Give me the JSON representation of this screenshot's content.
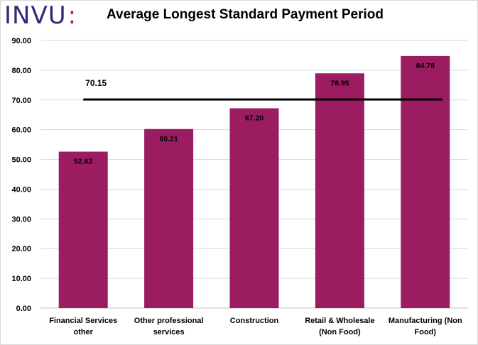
{
  "logo": {
    "text": "INVU",
    "colon": ":"
  },
  "chart_data": {
    "type": "bar",
    "title": "Average Longest Standard  Payment Period",
    "categories": [
      [
        "Financial Services",
        "other"
      ],
      [
        "Other professional",
        "services"
      ],
      [
        "Construction"
      ],
      [
        "Retail & Wholesale",
        "(Non Food)"
      ],
      [
        "Manufacturing (Non",
        "Food)"
      ]
    ],
    "values": [
      52.62,
      60.21,
      67.2,
      78.95,
      84.78
    ],
    "value_labels": [
      "52.62",
      "60.21",
      "67.20",
      "78.95",
      "84.78"
    ],
    "average": {
      "value": 70.15,
      "label": "70.15"
    },
    "ylim": [
      0,
      90
    ],
    "yticks": [
      "0.00",
      "10.00",
      "20.00",
      "30.00",
      "40.00",
      "50.00",
      "60.00",
      "70.00",
      "80.00",
      "90.00"
    ],
    "xlabel": "",
    "ylabel": "",
    "grid": true,
    "colors": {
      "bar": "#9b1c60",
      "average_line": "#000000",
      "grid": "#d9d9d9"
    }
  }
}
